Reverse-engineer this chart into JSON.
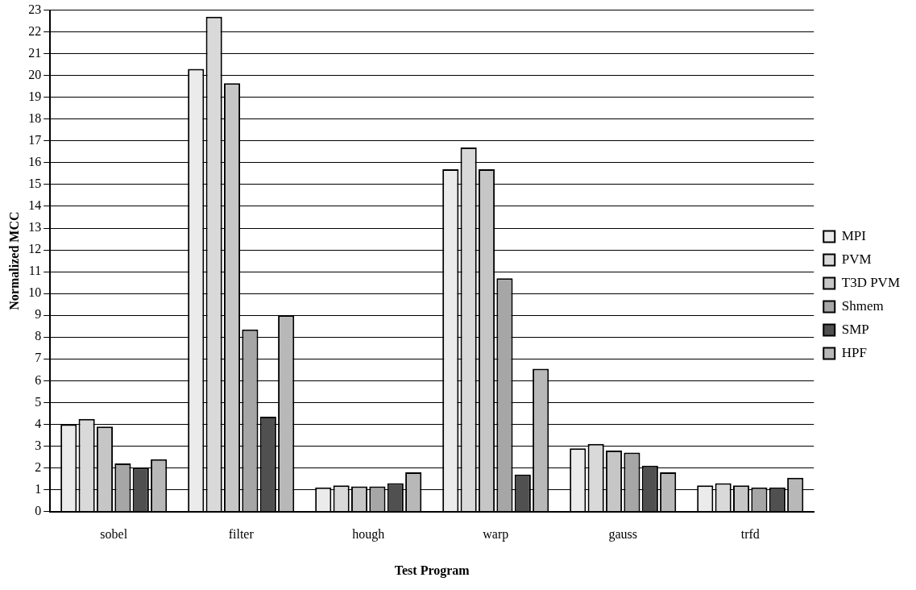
{
  "chart_data": {
    "type": "bar",
    "xlabel": "Test Program",
    "ylabel": "Normalized MCC",
    "categories": [
      "sobel",
      "filter",
      "hough",
      "warp",
      "gauss",
      "trfd"
    ],
    "series": [
      {
        "name": "MPI",
        "color": "#ebebeb",
        "values": [
          4.0,
          20.3,
          1.1,
          15.7,
          2.9,
          1.2
        ]
      },
      {
        "name": "PVM",
        "color": "#d9d9d9",
        "values": [
          4.25,
          22.7,
          1.2,
          16.7,
          3.1,
          1.3
        ]
      },
      {
        "name": "T3D PVM",
        "color": "#c6c6c6",
        "values": [
          3.9,
          19.65,
          1.15,
          15.7,
          2.8,
          1.2
        ]
      },
      {
        "name": "Shmem",
        "color": "#a6a6a6",
        "values": [
          2.2,
          8.35,
          1.15,
          10.7,
          2.7,
          1.1
        ]
      },
      {
        "name": "SMP",
        "color": "#505050",
        "values": [
          2.0,
          4.35,
          1.3,
          1.7,
          2.1,
          1.1
        ]
      },
      {
        "name": "HPF",
        "color": "#b8b8b8",
        "values": [
          2.4,
          9.0,
          1.8,
          6.55,
          1.8,
          1.55
        ]
      }
    ],
    "ylim": [
      0,
      23
    ],
    "yticks": [
      0,
      1,
      2,
      3,
      4,
      5,
      6,
      7,
      8,
      9,
      10,
      11,
      12,
      13,
      14,
      15,
      16,
      17,
      18,
      19,
      20,
      21,
      22,
      23
    ],
    "grid": "y",
    "legend": "right"
  }
}
